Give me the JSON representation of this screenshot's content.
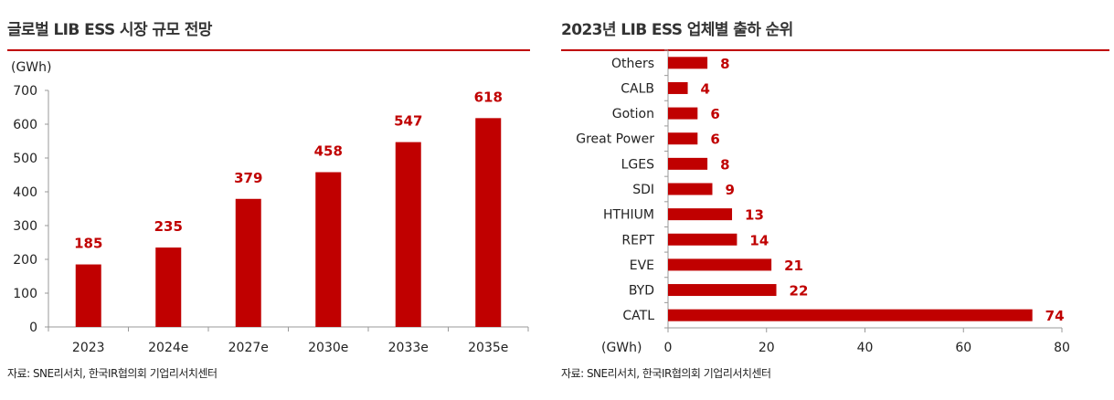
{
  "chart_data": [
    {
      "type": "bar",
      "orientation": "vertical",
      "title": "글로벌 LIB ESS 시장 규모 전망",
      "ylabel": "(GWh)",
      "categories": [
        "2023",
        "2024e",
        "2027e",
        "2030e",
        "2033e",
        "2035e"
      ],
      "values": [
        185,
        235,
        379,
        458,
        547,
        618
      ],
      "ylim": [
        0,
        700
      ],
      "yticks": [
        0,
        100,
        200,
        300,
        400,
        500,
        600,
        700
      ],
      "grid": false,
      "legend": "none",
      "bar_color": "#c00000",
      "source": "자료: SNE리서치, 한국IR협의회 기업리서치센터"
    },
    {
      "type": "bar",
      "orientation": "horizontal",
      "title": "2023년 LIB ESS 업체별 출하 순위",
      "xlabel": "(GWh)",
      "categories": [
        "Others",
        "CALB",
        "Gotion",
        "Great Power",
        "LGES",
        "SDI",
        "HTHIUM",
        "REPT",
        "EVE",
        "BYD",
        "CATL"
      ],
      "values": [
        8,
        4,
        6,
        6,
        8,
        9,
        13,
        14,
        21,
        22,
        74
      ],
      "xlim": [
        0,
        80
      ],
      "xticks": [
        0,
        20,
        40,
        60,
        80
      ],
      "grid": false,
      "legend": "none",
      "bar_color": "#c00000",
      "source": "자료: SNE리서치, 한국IR협의회 기업리서치센터"
    }
  ]
}
